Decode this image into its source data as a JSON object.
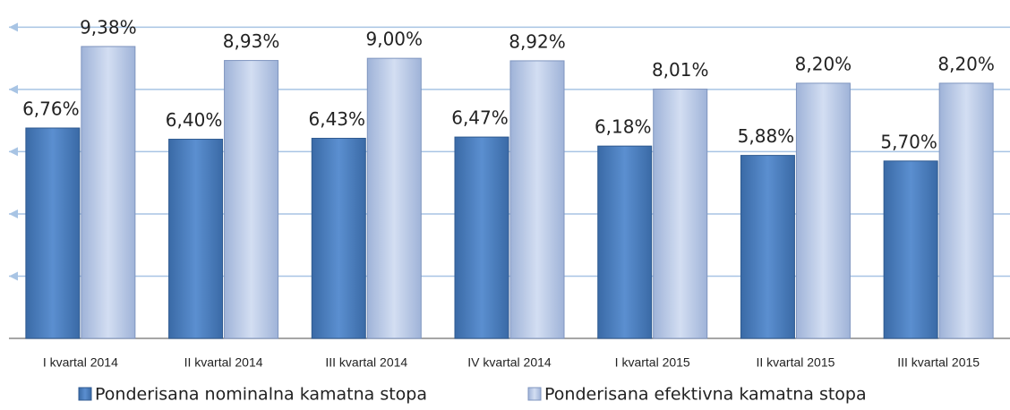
{
  "chart_data": {
    "type": "bar",
    "categories": [
      "I kvartal 2014",
      "II kvartal 2014",
      "III kvartal 2014",
      "IV kvartal 2014",
      "I kvartal 2015",
      "II kvartal 2015",
      "III kvartal 2015"
    ],
    "series": [
      {
        "name": "Ponderisana nominalna kamatna stopa",
        "color": "#4f81bd",
        "values": [
          6.76,
          6.4,
          6.43,
          6.47,
          6.18,
          5.88,
          5.7
        ],
        "value_labels": [
          "6,76%",
          "6,40%",
          "6,43%",
          "6,47%",
          "6,18%",
          "5,88%",
          "5,70%"
        ]
      },
      {
        "name": "Ponderisana efektivna kamatna stopa",
        "color": "#b9cae8",
        "values": [
          9.38,
          8.93,
          9.0,
          8.92,
          8.01,
          8.2,
          8.2
        ],
        "value_labels": [
          "9,38%",
          "8,93%",
          "9,00%",
          "8,92%",
          "8,01%",
          "8,20%",
          "8,20%"
        ]
      }
    ],
    "ylim": [
      0,
      10.5
    ],
    "yticks": [
      0,
      2,
      4,
      6,
      8,
      10
    ],
    "grid": true,
    "legend": "bottom"
  }
}
